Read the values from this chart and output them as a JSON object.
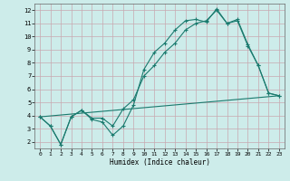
{
  "xlabel": "Humidex (Indice chaleur)",
  "xlim": [
    -0.5,
    23.5
  ],
  "ylim": [
    1.5,
    12.5
  ],
  "xticks": [
    0,
    1,
    2,
    3,
    4,
    5,
    6,
    7,
    8,
    9,
    10,
    11,
    12,
    13,
    14,
    15,
    16,
    17,
    18,
    19,
    20,
    21,
    22,
    23
  ],
  "yticks": [
    2,
    3,
    4,
    5,
    6,
    7,
    8,
    9,
    10,
    11,
    12
  ],
  "bg_color": "#cdecea",
  "grid_color": "#c8a8b0",
  "line_color": "#1a7a6e",
  "series1_x": [
    0,
    1,
    2,
    3,
    4,
    5,
    6,
    7,
    8,
    9,
    10,
    11,
    12,
    13,
    14,
    15,
    16,
    17,
    18,
    19,
    20,
    21,
    22,
    23
  ],
  "series1_y": [
    3.9,
    3.2,
    1.8,
    3.9,
    4.4,
    3.7,
    3.5,
    2.5,
    3.2,
    4.8,
    7.5,
    8.8,
    9.5,
    10.5,
    11.2,
    11.3,
    11.1,
    12.1,
    11.0,
    11.3,
    9.4,
    7.8,
    5.7,
    5.5
  ],
  "series2_x": [
    0,
    1,
    2,
    3,
    4,
    5,
    6,
    7,
    8,
    9,
    10,
    11,
    12,
    13,
    14,
    15,
    16,
    17,
    18,
    19,
    20,
    21,
    22,
    23
  ],
  "series2_y": [
    3.9,
    3.2,
    1.8,
    3.9,
    4.4,
    3.8,
    3.8,
    3.2,
    4.5,
    5.2,
    7.0,
    7.8,
    8.8,
    9.5,
    10.5,
    11.0,
    11.2,
    12.0,
    11.0,
    11.2,
    9.3,
    7.8,
    5.7,
    5.5
  ],
  "series3_x": [
    0,
    23
  ],
  "series3_y": [
    3.9,
    5.5
  ],
  "marker_size": 3,
  "linewidth": 0.8
}
